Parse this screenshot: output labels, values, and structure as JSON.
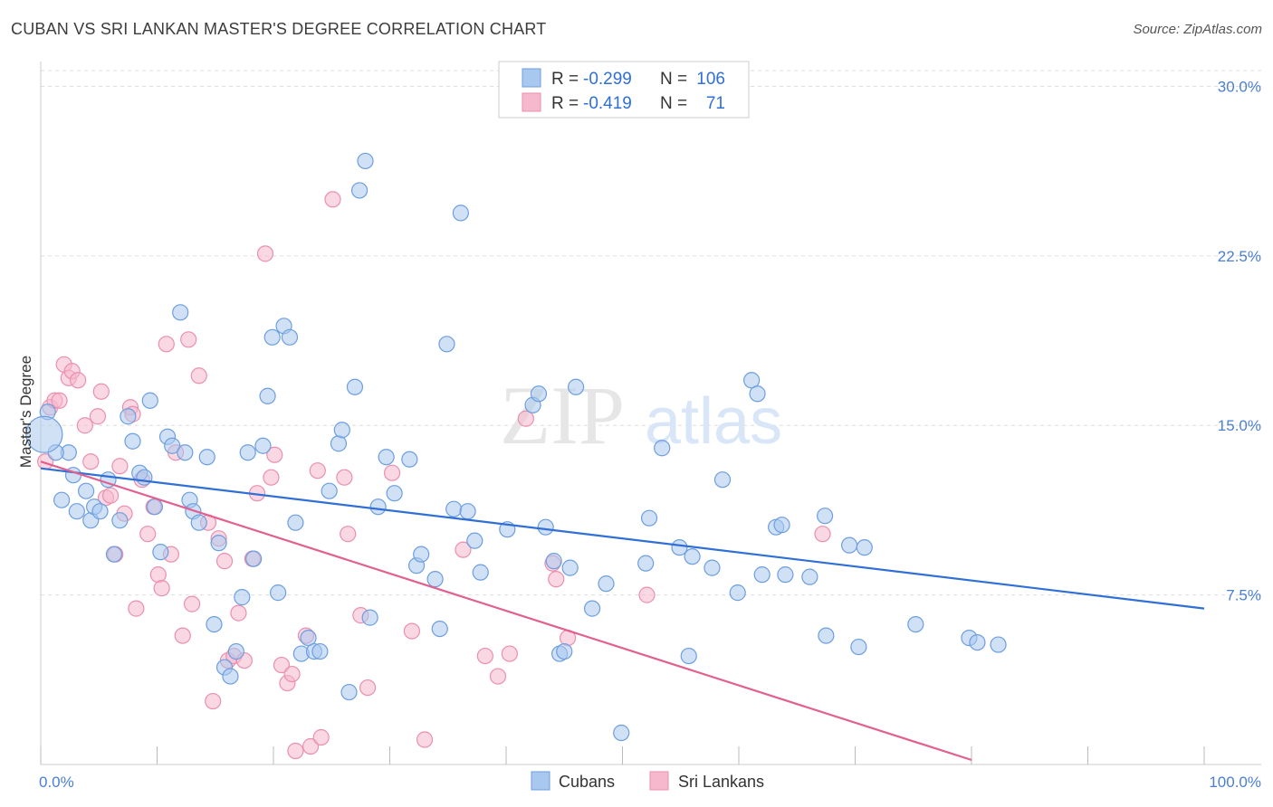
{
  "title": "CUBAN VS SRI LANKAN MASTER'S DEGREE CORRELATION CHART",
  "source": "Source: ZipAtlas.com",
  "watermark": {
    "zip": "ZIP",
    "atlas": "atlas"
  },
  "colors": {
    "cuban_fill": "#a9c8ef",
    "cuban_stroke": "#6d9edf",
    "cuban_line": "#2f6fd6",
    "srilankan_fill": "#f5b8cc",
    "srilankan_stroke": "#eb8fae",
    "srilankan_line": "#e2608f",
    "grid": "#dddddd",
    "axis_text": "#4a7fd4"
  },
  "legend": {
    "rows": [
      {
        "r_label": "R =",
        "r_value": "-0.299",
        "n_label": "N =",
        "n_value": "106"
      },
      {
        "r_label": "R =",
        "r_value": "-0.419",
        "n_label": "N =",
        "n_value": "71"
      }
    ]
  },
  "bottom_legend": [
    "Cubans",
    "Sri Lankans"
  ],
  "chart_data": {
    "type": "scatter",
    "ylabel": "Master's Degree",
    "x_tick_labels": [
      "0.0%",
      "100.0%"
    ],
    "y_tick_labels": [
      "7.5%",
      "15.0%",
      "22.5%",
      "30.0%"
    ],
    "y_ticks": [
      7.5,
      15.0,
      22.5,
      30.0
    ],
    "xlim": [
      0,
      100
    ],
    "ylim": [
      0,
      30.7
    ],
    "grid": true,
    "series": [
      {
        "name": "Cubans",
        "trend": {
          "x": [
            0,
            100
          ],
          "y": [
            13.1,
            6.9
          ]
        },
        "points": [
          [
            0.6,
            15.6
          ],
          [
            2.4,
            13.8
          ],
          [
            1.3,
            13.8
          ],
          [
            1.8,
            11.7
          ],
          [
            2.8,
            12.8
          ],
          [
            3.1,
            11.2
          ],
          [
            3.9,
            12.1
          ],
          [
            4.3,
            10.8
          ],
          [
            4.6,
            11.4
          ],
          [
            5.1,
            11.2
          ],
          [
            5.8,
            12.6
          ],
          [
            6.3,
            9.3
          ],
          [
            6.8,
            10.8
          ],
          [
            7.5,
            15.4
          ],
          [
            7.9,
            14.3
          ],
          [
            8.5,
            12.9
          ],
          [
            8.9,
            12.7
          ],
          [
            9.4,
            16.1
          ],
          [
            9.8,
            11.4
          ],
          [
            10.3,
            9.4
          ],
          [
            10.9,
            14.5
          ],
          [
            11.3,
            14.1
          ],
          [
            12.0,
            20.0
          ],
          [
            12.4,
            13.8
          ],
          [
            12.8,
            11.7
          ],
          [
            13.1,
            11.2
          ],
          [
            13.6,
            10.7
          ],
          [
            14.3,
            13.6
          ],
          [
            14.9,
            6.2
          ],
          [
            15.3,
            9.8
          ],
          [
            15.8,
            4.3
          ],
          [
            16.3,
            3.9
          ],
          [
            16.8,
            5.0
          ],
          [
            17.3,
            7.4
          ],
          [
            17.8,
            13.8
          ],
          [
            18.3,
            9.1
          ],
          [
            19.1,
            14.1
          ],
          [
            19.5,
            16.3
          ],
          [
            19.9,
            18.9
          ],
          [
            20.4,
            7.6
          ],
          [
            20.9,
            19.4
          ],
          [
            21.4,
            18.9
          ],
          [
            21.9,
            10.7
          ],
          [
            22.4,
            4.9
          ],
          [
            23.0,
            5.6
          ],
          [
            23.5,
            5.0
          ],
          [
            24.0,
            5.0
          ],
          [
            24.8,
            12.1
          ],
          [
            25.6,
            14.2
          ],
          [
            25.9,
            14.8
          ],
          [
            26.5,
            3.2
          ],
          [
            27.0,
            16.7
          ],
          [
            27.4,
            25.4
          ],
          [
            27.9,
            26.7
          ],
          [
            28.3,
            6.5
          ],
          [
            29.0,
            11.4
          ],
          [
            29.7,
            13.6
          ],
          [
            30.4,
            12.0
          ],
          [
            31.7,
            13.5
          ],
          [
            32.3,
            8.8
          ],
          [
            32.7,
            9.3
          ],
          [
            33.9,
            8.2
          ],
          [
            34.3,
            6.0
          ],
          [
            34.9,
            18.6
          ],
          [
            35.5,
            11.3
          ],
          [
            36.1,
            24.4
          ],
          [
            36.7,
            11.2
          ],
          [
            37.3,
            9.9
          ],
          [
            37.8,
            8.5
          ],
          [
            40.1,
            10.4
          ],
          [
            42.3,
            15.9
          ],
          [
            42.8,
            16.4
          ],
          [
            43.4,
            10.5
          ],
          [
            44.1,
            9.0
          ],
          [
            44.6,
            4.9
          ],
          [
            45.0,
            5.0
          ],
          [
            45.5,
            8.7
          ],
          [
            46.0,
            16.7
          ],
          [
            47.4,
            6.9
          ],
          [
            48.6,
            8.0
          ],
          [
            49.9,
            1.4
          ],
          [
            52.0,
            8.9
          ],
          [
            52.3,
            10.9
          ],
          [
            53.4,
            14.0
          ],
          [
            54.9,
            9.6
          ],
          [
            56.0,
            9.2
          ],
          [
            55.7,
            4.8
          ],
          [
            57.7,
            8.7
          ],
          [
            58.6,
            12.6
          ],
          [
            59.9,
            7.6
          ],
          [
            61.1,
            17.0
          ],
          [
            61.6,
            16.4
          ],
          [
            62.0,
            8.4
          ],
          [
            63.2,
            10.5
          ],
          [
            63.7,
            10.6
          ],
          [
            64.0,
            8.4
          ],
          [
            66.1,
            8.3
          ],
          [
            67.4,
            11.0
          ],
          [
            67.5,
            5.7
          ],
          [
            69.5,
            9.7
          ],
          [
            70.8,
            9.6
          ],
          [
            70.3,
            5.2
          ],
          [
            75.2,
            6.2
          ],
          [
            79.8,
            5.6
          ],
          [
            80.5,
            5.4
          ],
          [
            82.3,
            5.3
          ]
        ]
      },
      {
        "name": "Sri Lankans",
        "trend": {
          "x": [
            0,
            80
          ],
          "y": [
            13.4,
            0.2
          ]
        },
        "points": [
          [
            0.4,
            13.4
          ],
          [
            0.8,
            15.8
          ],
          [
            1.2,
            16.1
          ],
          [
            1.6,
            16.1
          ],
          [
            2.0,
            17.7
          ],
          [
            2.4,
            17.1
          ],
          [
            2.7,
            17.4
          ],
          [
            3.2,
            17.0
          ],
          [
            3.8,
            15.0
          ],
          [
            4.3,
            13.4
          ],
          [
            4.9,
            15.4
          ],
          [
            5.2,
            16.5
          ],
          [
            5.6,
            11.8
          ],
          [
            6.0,
            11.9
          ],
          [
            6.4,
            9.3
          ],
          [
            6.8,
            13.2
          ],
          [
            7.2,
            11.1
          ],
          [
            7.7,
            15.8
          ],
          [
            7.9,
            15.5
          ],
          [
            8.2,
            6.9
          ],
          [
            8.7,
            12.6
          ],
          [
            9.2,
            10.2
          ],
          [
            9.7,
            11.4
          ],
          [
            10.1,
            8.4
          ],
          [
            10.4,
            7.8
          ],
          [
            10.8,
            18.6
          ],
          [
            11.2,
            9.3
          ],
          [
            11.6,
            13.8
          ],
          [
            12.2,
            5.7
          ],
          [
            12.7,
            18.8
          ],
          [
            13.0,
            7.1
          ],
          [
            13.6,
            17.2
          ],
          [
            14.4,
            10.7
          ],
          [
            14.8,
            2.8
          ],
          [
            15.3,
            10.0
          ],
          [
            15.8,
            9.0
          ],
          [
            16.1,
            4.6
          ],
          [
            16.6,
            4.8
          ],
          [
            17.0,
            6.7
          ],
          [
            17.5,
            4.6
          ],
          [
            18.2,
            9.1
          ],
          [
            18.6,
            12.0
          ],
          [
            19.3,
            22.6
          ],
          [
            19.8,
            12.7
          ],
          [
            20.1,
            13.7
          ],
          [
            20.7,
            4.4
          ],
          [
            21.2,
            3.6
          ],
          [
            21.6,
            4.0
          ],
          [
            21.9,
            0.6
          ],
          [
            22.8,
            5.7
          ],
          [
            23.2,
            0.8
          ],
          [
            23.8,
            13.0
          ],
          [
            24.1,
            1.2
          ],
          [
            25.1,
            25.0
          ],
          [
            26.1,
            12.7
          ],
          [
            26.4,
            10.2
          ],
          [
            27.5,
            6.6
          ],
          [
            28.1,
            3.4
          ],
          [
            30.2,
            12.9
          ],
          [
            31.9,
            5.9
          ],
          [
            33.0,
            1.1
          ],
          [
            36.3,
            9.5
          ],
          [
            38.2,
            4.8
          ],
          [
            39.3,
            3.9
          ],
          [
            40.3,
            4.9
          ],
          [
            41.7,
            15.3
          ],
          [
            44.0,
            8.9
          ],
          [
            44.3,
            8.2
          ],
          [
            45.3,
            5.6
          ],
          [
            52.1,
            7.5
          ],
          [
            67.2,
            10.2
          ]
        ]
      }
    ]
  }
}
